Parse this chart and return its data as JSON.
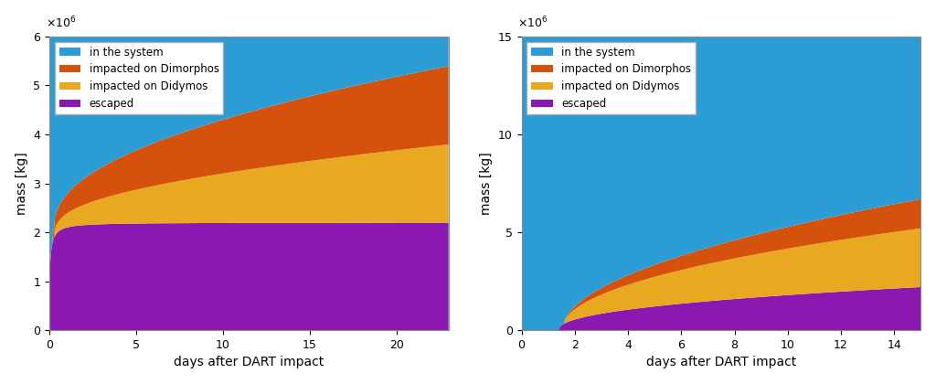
{
  "left": {
    "xlim": [
      0,
      23
    ],
    "ylim": [
      0,
      6000000
    ],
    "yticks": [
      0,
      1000000,
      2000000,
      3000000,
      4000000,
      5000000,
      6000000
    ],
    "xticks": [
      0,
      5,
      10,
      15,
      20
    ],
    "xlabel": "days after DART impact",
    "ylabel": "mass [kg]"
  },
  "right": {
    "xlim": [
      0,
      15
    ],
    "ylim": [
      0,
      15000000
    ],
    "yticks": [
      0,
      5000000,
      10000000,
      15000000
    ],
    "xticks": [
      0,
      2,
      4,
      6,
      8,
      10,
      12,
      14
    ],
    "xlabel": "days after DART impact",
    "ylabel": "mass [kg]"
  },
  "colors": {
    "in_system": "#2b9dd4",
    "dimorphos": "#d4520c",
    "didymos": "#e8a820",
    "escaped": "#8b18b0"
  },
  "legend_labels": [
    "in the system",
    "impacted on Dimorphos",
    "impacted on Didymos",
    "escaped"
  ]
}
